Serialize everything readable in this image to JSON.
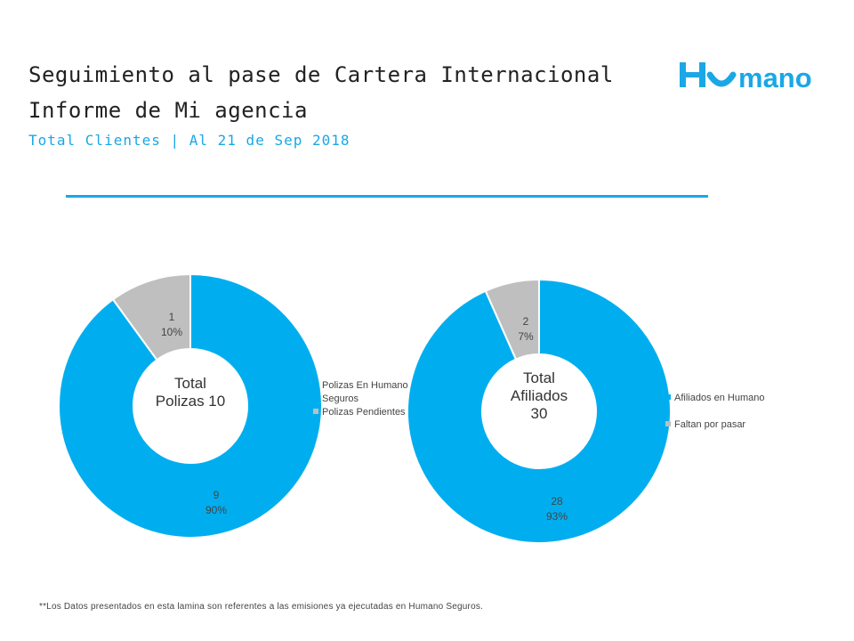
{
  "header": {
    "title_line1": "Seguimiento al pase de Cartera Internacional",
    "title_line2": "Informe de Mi agencia",
    "subtitle": "Total Clientes | Al 21 de Sep 2018",
    "logo_text": "Humano"
  },
  "colors": {
    "primary": "#00aeef",
    "secondary": "#bfbfbf",
    "accent_text": "#1aa7e6"
  },
  "chart_data": [
    {
      "type": "pie",
      "center_label": [
        "Total",
        "Polizas 10"
      ],
      "categories": [
        "Polizas En Humano Seguros",
        "Polizas Pendientes"
      ],
      "values": [
        9,
        1
      ],
      "percent_labels": [
        "90%",
        "10%"
      ],
      "value_labels": [
        "9",
        "1"
      ],
      "legend": [
        "Polizas En Humano",
        "Seguros",
        "Polizas Pendientes"
      ],
      "legend_position": "right"
    },
    {
      "type": "pie",
      "center_label": [
        "Total",
        "Afiliados",
        "30"
      ],
      "categories": [
        "Afiliados en Humano",
        "Faltan por pasar"
      ],
      "values": [
        28,
        2
      ],
      "percent_labels": [
        "93%",
        "7%"
      ],
      "value_labels": [
        "28",
        "2"
      ],
      "legend": [
        "Afiliados en Humano",
        "Faltan por pasar"
      ],
      "legend_position": "right"
    }
  ],
  "footnote": "**Los Datos presentados en esta lamina son referentes a las emisiones ya ejecutadas en Humano Seguros."
}
